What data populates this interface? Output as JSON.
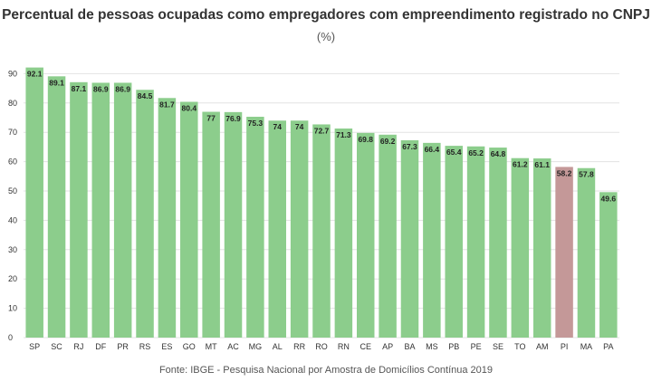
{
  "chart_data": {
    "type": "bar",
    "title": "Percentual de pessoas ocupadas como empregadores com empreendimento registrado no CNPJ",
    "subtitle": "(%)",
    "source": "Fonte: IBGE - Pesquisa Nacional por Amostra de Domicílios Contínua 2019",
    "xlabel": "",
    "ylabel": "",
    "ylim": [
      0,
      93
    ],
    "yticks": [
      0,
      10,
      20,
      30,
      40,
      50,
      60,
      70,
      80,
      90
    ],
    "grid": true,
    "legend": "none",
    "colors": {
      "default": "#8ccd8c",
      "highlight": "#c49898"
    },
    "highlight_category": "PI",
    "categories": [
      "SP",
      "SC",
      "RJ",
      "DF",
      "PR",
      "RS",
      "ES",
      "GO",
      "MT",
      "AC",
      "MG",
      "AL",
      "RR",
      "RO",
      "RN",
      "CE",
      "AP",
      "BA",
      "MS",
      "PB",
      "PE",
      "SE",
      "TO",
      "AM",
      "PI",
      "MA",
      "PA"
    ],
    "values": [
      92.1,
      89.1,
      87.1,
      86.9,
      86.9,
      84.5,
      81.7,
      80.4,
      77,
      76.9,
      75.3,
      74,
      74,
      72.7,
      71.3,
      69.8,
      69.2,
      67.3,
      66.4,
      65.4,
      65.2,
      64.8,
      61.2,
      61.1,
      58.2,
      57.8,
      49.6
    ]
  }
}
